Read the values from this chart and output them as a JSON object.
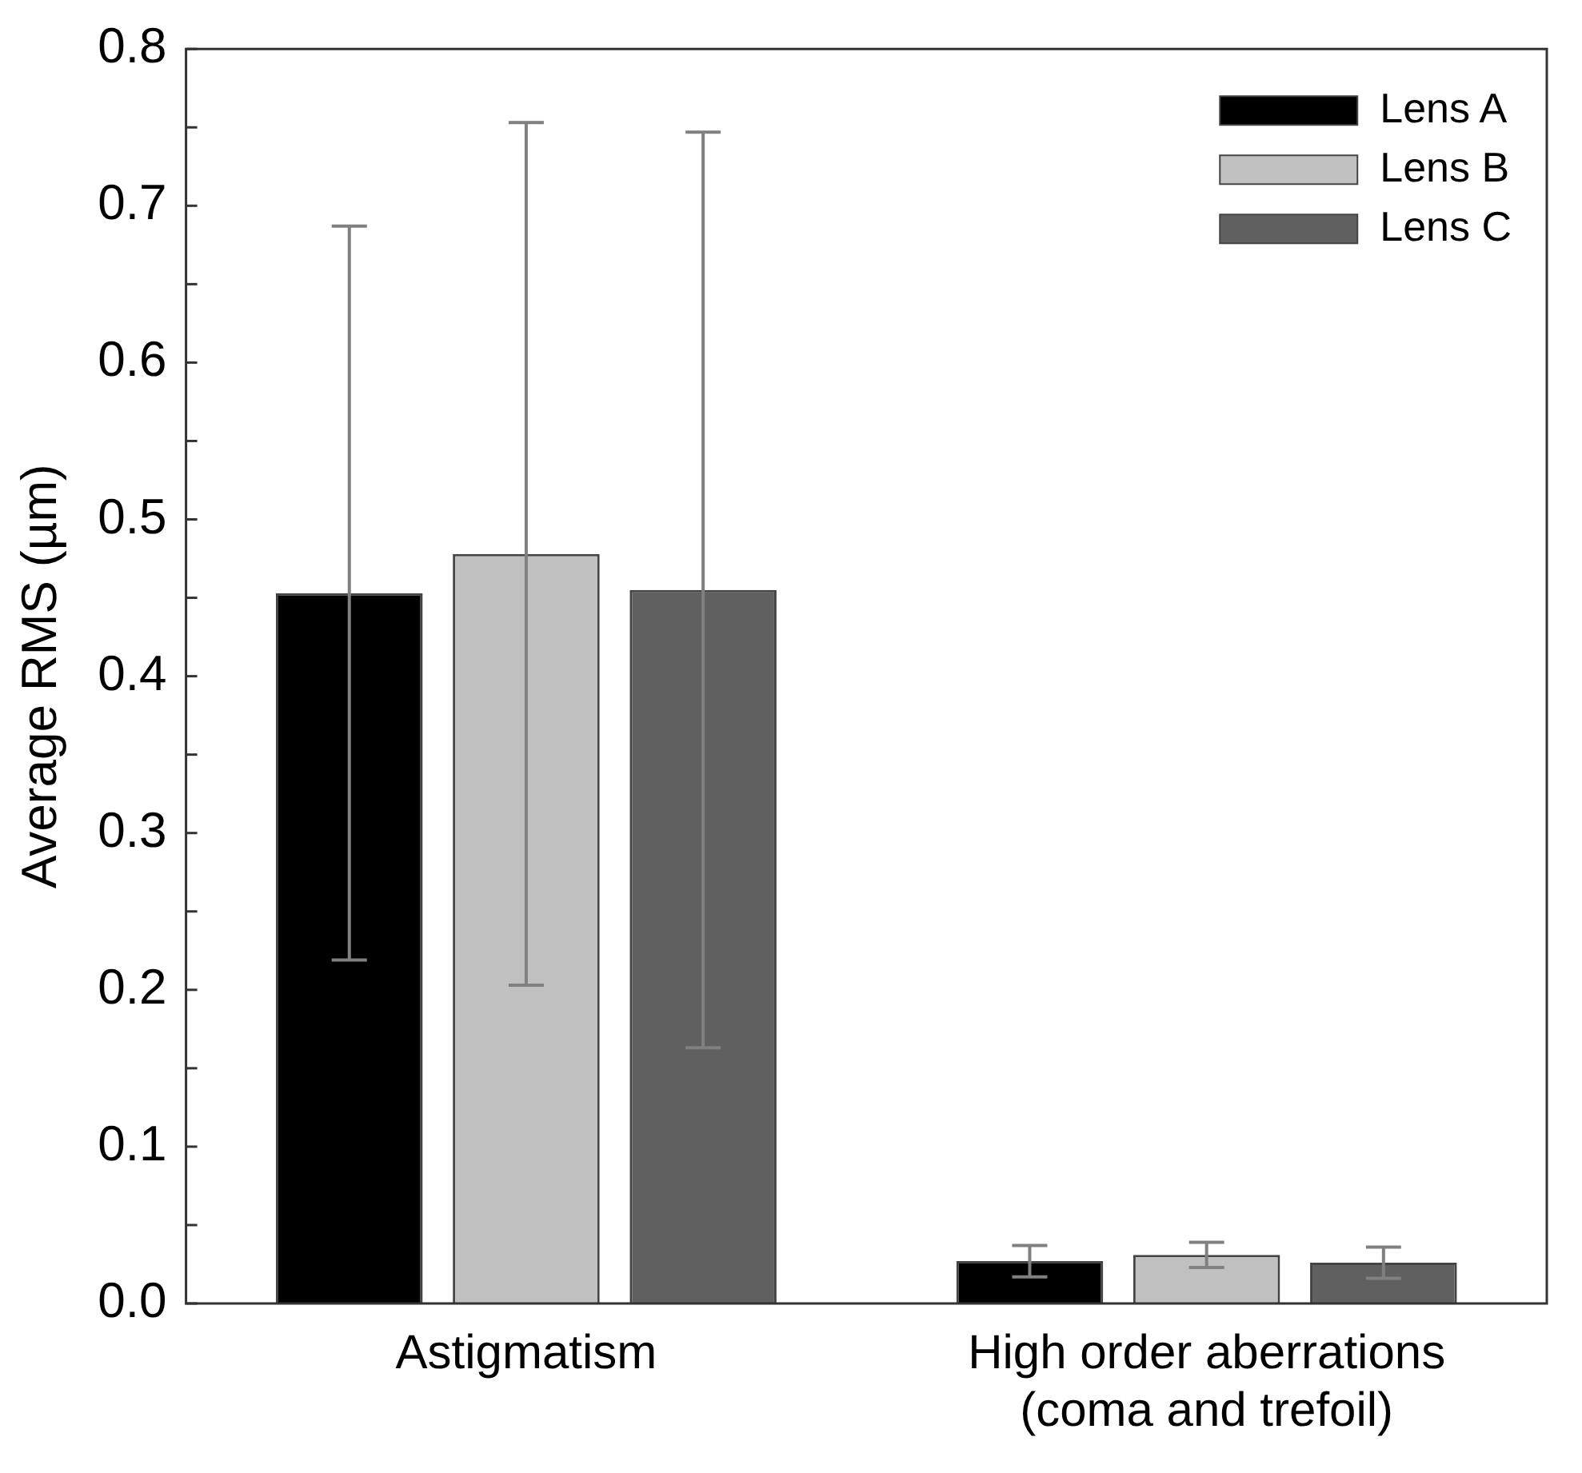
{
  "chart_data": {
    "type": "bar",
    "ylabel": "Average RMS (µm)",
    "categories": [
      "Astigmatism",
      "High order aberrations\n(coma and trefoil)"
    ],
    "series": [
      {
        "name": "Lens A",
        "color": "#000000",
        "values": [
          0.453,
          0.027
        ],
        "errors": [
          0.234,
          0.01
        ]
      },
      {
        "name": "Lens B",
        "color": "#c0c0c0",
        "values": [
          0.478,
          0.031
        ],
        "errors": [
          0.275,
          0.008
        ]
      },
      {
        "name": "Lens C",
        "color": "#606060",
        "values": [
          0.455,
          0.026
        ],
        "errors": [
          0.292,
          0.01
        ]
      }
    ],
    "ylim": [
      0,
      0.8
    ],
    "yticks": [
      {
        "value": 0,
        "label": "0.0"
      },
      {
        "value": 0.05,
        "label": null
      },
      {
        "value": 0.1,
        "label": "0.1"
      },
      {
        "value": 0.15,
        "label": null
      },
      {
        "value": 0.2,
        "label": "0.2"
      },
      {
        "value": 0.25,
        "label": null
      },
      {
        "value": 0.3,
        "label": "0.3"
      },
      {
        "value": 0.35,
        "label": null
      },
      {
        "value": 0.4,
        "label": "0.4"
      },
      {
        "value": 0.45,
        "label": null
      },
      {
        "value": 0.5,
        "label": "0.5"
      },
      {
        "value": 0.55,
        "label": null
      },
      {
        "value": 0.6,
        "label": "0.6"
      },
      {
        "value": 0.65,
        "label": null
      },
      {
        "value": 0.7,
        "label": "0.7"
      },
      {
        "value": 0.75,
        "label": null
      },
      {
        "value": 0.8,
        "label": "0.8"
      }
    ],
    "grid": false,
    "legend": "top right"
  }
}
